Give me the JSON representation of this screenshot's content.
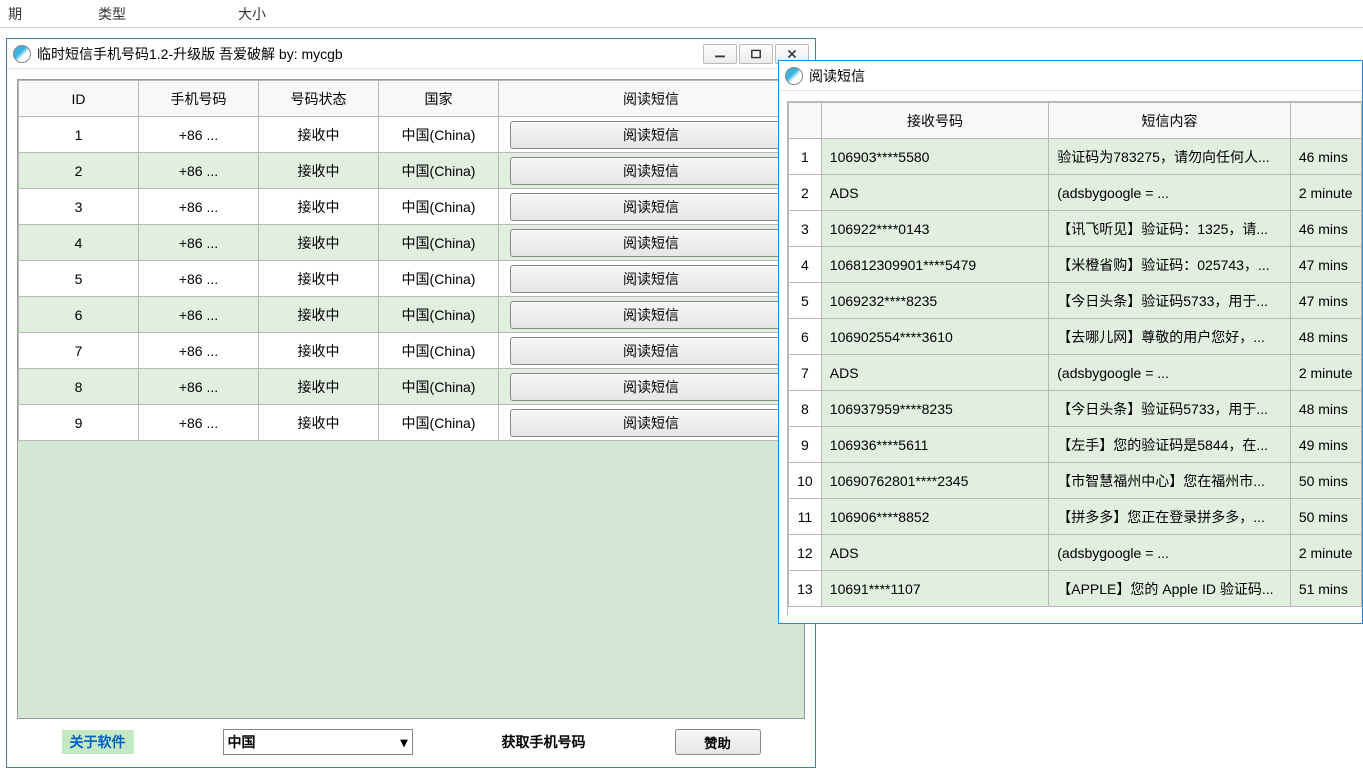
{
  "top_header": {
    "col1": "期",
    "col2": "类型",
    "col3": "大小"
  },
  "main_window": {
    "title": "临时短信手机号码1.2-升级版 吾爱破解 by: mycgb",
    "columns": {
      "id": "ID",
      "phone": "手机号码",
      "status": "号码状态",
      "country": "国家",
      "action": "阅读短信"
    },
    "read_btn_label": "阅读短信",
    "rows": [
      {
        "id": "1",
        "phone": "+86 ...",
        "status": "接收中",
        "country": "中国(China)"
      },
      {
        "id": "2",
        "phone": "+86 ...",
        "status": "接收中",
        "country": "中国(China)"
      },
      {
        "id": "3",
        "phone": "+86 ...",
        "status": "接收中",
        "country": "中国(China)"
      },
      {
        "id": "4",
        "phone": "+86 ...",
        "status": "接收中",
        "country": "中国(China)"
      },
      {
        "id": "5",
        "phone": "+86 ...",
        "status": "接收中",
        "country": "中国(China)"
      },
      {
        "id": "6",
        "phone": "+86 ...",
        "status": "接收中",
        "country": "中国(China)"
      },
      {
        "id": "7",
        "phone": "+86 ...",
        "status": "接收中",
        "country": "中国(China)"
      },
      {
        "id": "8",
        "phone": "+86 ...",
        "status": "接收中",
        "country": "中国(China)"
      },
      {
        "id": "9",
        "phone": "+86 ...",
        "status": "接收中",
        "country": "中国(China)"
      }
    ],
    "bottom": {
      "about": "关于软件",
      "country_select": "中国",
      "get_phone": "获取手机号码",
      "sponsor": "赞助"
    }
  },
  "sms_window": {
    "title": "阅读短信",
    "columns": {
      "recv": "接收号码",
      "content": "短信内容"
    },
    "rows": [
      {
        "n": "1",
        "recv": "106903****5580",
        "content": "验证码为783275，请勿向任何人...",
        "time": "46 mins"
      },
      {
        "n": "2",
        "recv": "ADS",
        "content": "(adsbygoogle = ...",
        "time": "2 minute"
      },
      {
        "n": "3",
        "recv": "106922****0143",
        "content": "【讯飞听见】验证码：1325，请...",
        "time": "46 mins"
      },
      {
        "n": "4",
        "recv": "106812309901****5479",
        "content": "【米橙省购】验证码：025743，...",
        "time": "47 mins"
      },
      {
        "n": "5",
        "recv": "1069232****8235",
        "content": "【今日头条】验证码5733，用于...",
        "time": "47 mins"
      },
      {
        "n": "6",
        "recv": "106902554****3610",
        "content": "【去哪儿网】尊敬的用户您好，...",
        "time": "48 mins"
      },
      {
        "n": "7",
        "recv": "ADS",
        "content": "(adsbygoogle = ...",
        "time": "2 minute"
      },
      {
        "n": "8",
        "recv": "106937959****8235",
        "content": "【今日头条】验证码5733，用于...",
        "time": "48 mins"
      },
      {
        "n": "9",
        "recv": "106936****5611",
        "content": "【左手】您的验证码是5844，在...",
        "time": "49 mins"
      },
      {
        "n": "10",
        "recv": "10690762801****2345",
        "content": "【市智慧福州中心】您在福州市...",
        "time": "50 mins"
      },
      {
        "n": "11",
        "recv": "106906****8852",
        "content": "【拼多多】您正在登录拼多多，...",
        "time": "50 mins"
      },
      {
        "n": "12",
        "recv": "ADS",
        "content": "(adsbygoogle = ...",
        "time": "2 minute"
      },
      {
        "n": "13",
        "recv": "10691****1107",
        "content": "【APPLE】您的 Apple ID 验证码...",
        "time": "51 mins"
      }
    ]
  },
  "colors": {
    "row_alt_bg": "#e1eee0",
    "border": "#b8b8b8",
    "window_border_main": "#3c7fb1",
    "window_border_sms": "#1e88e5"
  }
}
